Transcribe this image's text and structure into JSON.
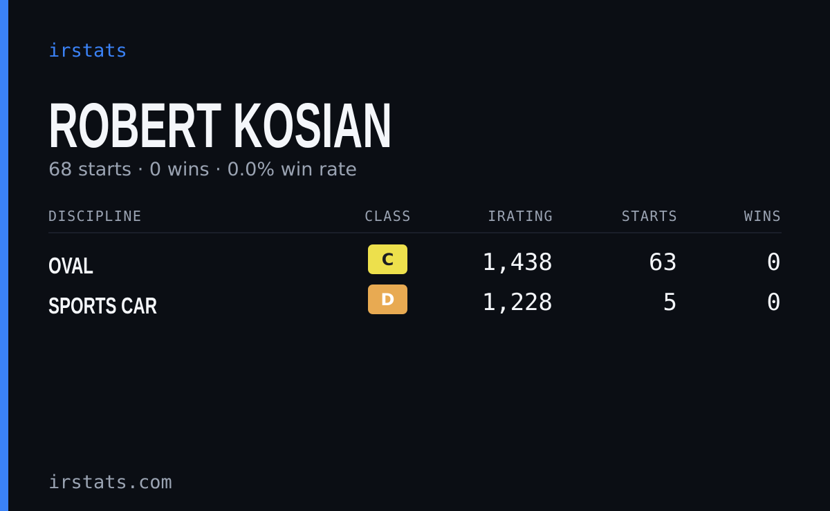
{
  "brand": "irstats",
  "driver": {
    "name": "ROBERT KOSIAN",
    "summary": "68 starts · 0 wins · 0.0% win rate"
  },
  "table": {
    "headers": [
      "DISCIPLINE",
      "CLASS",
      "IRATING",
      "STARTS",
      "WINS"
    ],
    "rows": [
      [
        "OVAL",
        "C",
        "1,438",
        "63",
        "0"
      ],
      [
        "SPORTS CAR",
        "D",
        "1,228",
        "5",
        "0"
      ]
    ]
  },
  "footer": "irstats.com"
}
